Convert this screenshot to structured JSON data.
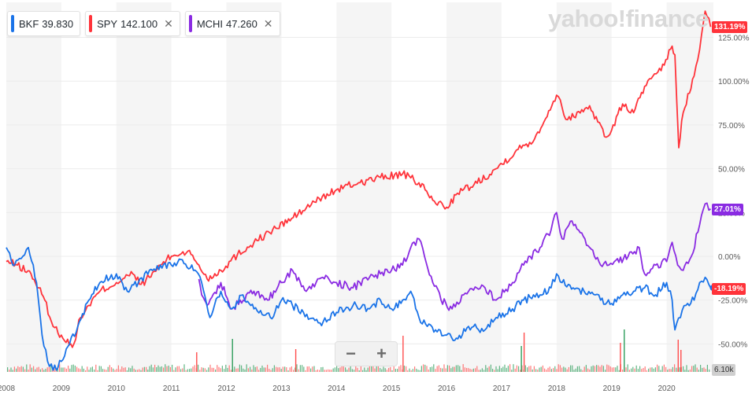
{
  "watermark": "yahoo!finance",
  "legend": [
    {
      "symbol": "BKF",
      "value": "39.830",
      "color": "#1a73e8",
      "closable": false
    },
    {
      "symbol": "SPY",
      "value": "142.100",
      "color": "#ff333a",
      "closable": true
    },
    {
      "symbol": "MCHI",
      "value": "47.260",
      "color": "#8a2be2",
      "closable": true
    }
  ],
  "zoom": {
    "minus": "−",
    "plus": "+"
  },
  "badges": {
    "spy": {
      "text": "131.19%",
      "color": "#ff333a"
    },
    "mchi": {
      "text": "27.01%",
      "color": "#8a2be2"
    },
    "bkf": {
      "text": "-18.19%",
      "color": "#ff333a"
    },
    "volume": {
      "text": "6.10k"
    }
  },
  "chart_data": {
    "type": "line",
    "y_unit": "percent change",
    "ylim": [
      -66,
      145
    ],
    "xlim": [
      2008.0,
      2020.85
    ],
    "y_ticks": [
      "125.00%",
      "100.00%",
      "75.00%",
      "50.00%",
      "25.00%",
      "0.00%",
      "-25.00%",
      "-50.00%"
    ],
    "x_ticks": [
      "2008",
      "2009",
      "2010",
      "2011",
      "2012",
      "2013",
      "2014",
      "2015",
      "2016",
      "2017",
      "2018",
      "2019",
      "2020"
    ],
    "series": [
      {
        "name": "SPY",
        "color": "#ff333a",
        "x": [
          2008.0,
          2008.2,
          2008.45,
          2008.7,
          2008.85,
          2009.0,
          2009.2,
          2009.35,
          2009.5,
          2009.7,
          2010.0,
          2010.3,
          2010.45,
          2010.6,
          2010.8,
          2011.0,
          2011.3,
          2011.5,
          2011.65,
          2011.9,
          2012.2,
          2012.5,
          2012.9,
          2013.3,
          2013.6,
          2014.0,
          2014.4,
          2014.8,
          2015.2,
          2015.5,
          2015.75,
          2016.0,
          2016.2,
          2016.5,
          2016.9,
          2017.3,
          2017.6,
          2018.0,
          2018.1,
          2018.2,
          2018.6,
          2018.9,
          2019.0,
          2019.2,
          2019.4,
          2019.6,
          2019.9,
          2020.1,
          2020.15,
          2020.22,
          2020.3,
          2020.5,
          2020.6,
          2020.7,
          2020.8
        ],
        "values": [
          -3,
          -5,
          -10,
          -25,
          -40,
          -45,
          -52,
          -35,
          -28,
          -20,
          -15,
          -10,
          -16,
          -12,
          -5,
          0,
          3,
          -5,
          -13,
          -8,
          1,
          8,
          16,
          24,
          31,
          38,
          42,
          45,
          47,
          42,
          32,
          28,
          36,
          41,
          50,
          61,
          67,
          92,
          85,
          78,
          86,
          68,
          72,
          87,
          82,
          97,
          106,
          120,
          115,
          62,
          82,
          103,
          118,
          140,
          131
        ]
      },
      {
        "name": "MCHI",
        "color": "#8a2be2",
        "x": [
          2011.5,
          2011.55,
          2011.65,
          2011.9,
          2012.1,
          2012.25,
          2012.5,
          2012.75,
          2013.0,
          2013.2,
          2013.45,
          2013.75,
          2014.0,
          2014.3,
          2014.6,
          2014.8,
          2015.0,
          2015.2,
          2015.35,
          2015.5,
          2015.6,
          2015.75,
          2015.9,
          2016.1,
          2016.4,
          2016.7,
          2016.9,
          2017.2,
          2017.4,
          2017.7,
          2017.9,
          2018.0,
          2018.1,
          2018.25,
          2018.4,
          2018.6,
          2018.8,
          2018.95,
          2019.05,
          2019.3,
          2019.5,
          2019.6,
          2019.8,
          2020.0,
          2020.1,
          2020.2,
          2020.3,
          2020.45,
          2020.6,
          2020.7,
          2020.8
        ],
        "values": [
          -13,
          -22,
          -28,
          -15,
          -30,
          -25,
          -20,
          -25,
          -15,
          -8,
          -20,
          -12,
          -15,
          -18,
          -12,
          -10,
          -8,
          -5,
          5,
          10,
          0,
          -15,
          -25,
          -30,
          -20,
          -18,
          -25,
          -15,
          -5,
          5,
          15,
          25,
          10,
          20,
          15,
          5,
          -5,
          -5,
          -3,
          0,
          5,
          -10,
          -5,
          -3,
          8,
          -5,
          -8,
          0,
          18,
          30,
          27
        ]
      },
      {
        "name": "BKF",
        "color": "#1a73e8",
        "x": [
          2008.0,
          2008.15,
          2008.3,
          2008.4,
          2008.55,
          2008.65,
          2008.75,
          2008.85,
          2009.0,
          2009.15,
          2009.3,
          2009.5,
          2009.7,
          2010.0,
          2010.2,
          2010.4,
          2010.6,
          2010.8,
          2011.0,
          2011.2,
          2011.4,
          2011.55,
          2011.7,
          2011.9,
          2012.1,
          2012.3,
          2012.5,
          2012.8,
          2013.0,
          2013.2,
          2013.4,
          2013.7,
          2014.0,
          2014.3,
          2014.6,
          2014.8,
          2015.0,
          2015.2,
          2015.35,
          2015.5,
          2015.65,
          2015.8,
          2016.0,
          2016.15,
          2016.4,
          2016.7,
          2016.9,
          2017.2,
          2017.4,
          2017.7,
          2017.9,
          2018.0,
          2018.1,
          2018.3,
          2018.5,
          2018.7,
          2018.8,
          2019.0,
          2019.2,
          2019.4,
          2019.6,
          2019.8,
          2020.0,
          2020.1,
          2020.15,
          2020.25,
          2020.35,
          2020.5,
          2020.6,
          2020.7,
          2020.8
        ],
        "values": [
          5,
          -5,
          0,
          5,
          -15,
          -45,
          -60,
          -65,
          -60,
          -50,
          -40,
          -25,
          -15,
          -10,
          -20,
          -15,
          -8,
          -5,
          -5,
          -2,
          -8,
          -15,
          -35,
          -20,
          -30,
          -22,
          -30,
          -35,
          -25,
          -28,
          -32,
          -38,
          -32,
          -28,
          -30,
          -25,
          -30,
          -25,
          -20,
          -35,
          -40,
          -42,
          -45,
          -48,
          -40,
          -42,
          -35,
          -30,
          -25,
          -22,
          -18,
          -10,
          -15,
          -18,
          -20,
          -22,
          -25,
          -27,
          -22,
          -20,
          -18,
          -22,
          -15,
          -25,
          -42,
          -35,
          -28,
          -25,
          -15,
          -12,
          -18
        ]
      }
    ],
    "volume": {
      "max_label": "6.10k",
      "spike_years": [
        2011.45,
        2012.1,
        2013.25,
        2015.2,
        2017.35,
        2017.4,
        2019.15,
        2019.22,
        2020.2,
        2020.25
      ]
    }
  }
}
